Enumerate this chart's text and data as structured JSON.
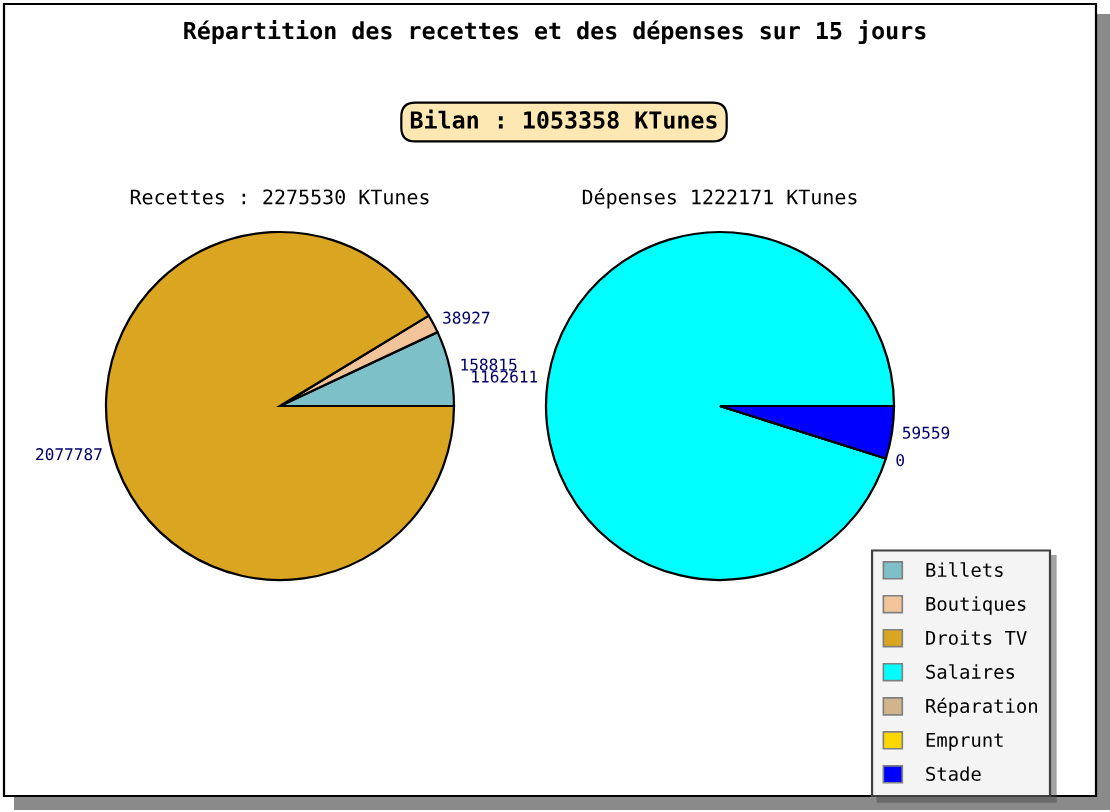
{
  "chart_data": [
    {
      "type": "pie",
      "title": "Recettes : 2275530 KTunes",
      "annotations": [
        "Répartition des recettes et des dépenses sur 15 jours",
        "Bilan : 1053358 KTunes"
      ],
      "categories": [
        "Billets",
        "Boutiques",
        "Droits TV"
      ],
      "values": [
        158815,
        38927,
        2077787
      ],
      "colors": [
        "#7ec0c8",
        "#f2c49a",
        "#daa520"
      ],
      "value_labels": [
        "158815",
        "38927",
        "2077787"
      ],
      "legend": "bottom right"
    },
    {
      "type": "pie",
      "title": "Dépenses 1222171 KTunes",
      "categories": [
        "Salaires",
        "Réparation",
        "Emprunt",
        "Stade"
      ],
      "values": [
        1162611,
        0,
        0,
        59559
      ],
      "colors": [
        "#00ffff",
        "#d2b48c",
        "#ffd700",
        "#0000ff"
      ],
      "value_labels": [
        "1162611",
        "0",
        null,
        "59559"
      ],
      "legend": "bottom right"
    }
  ]
}
